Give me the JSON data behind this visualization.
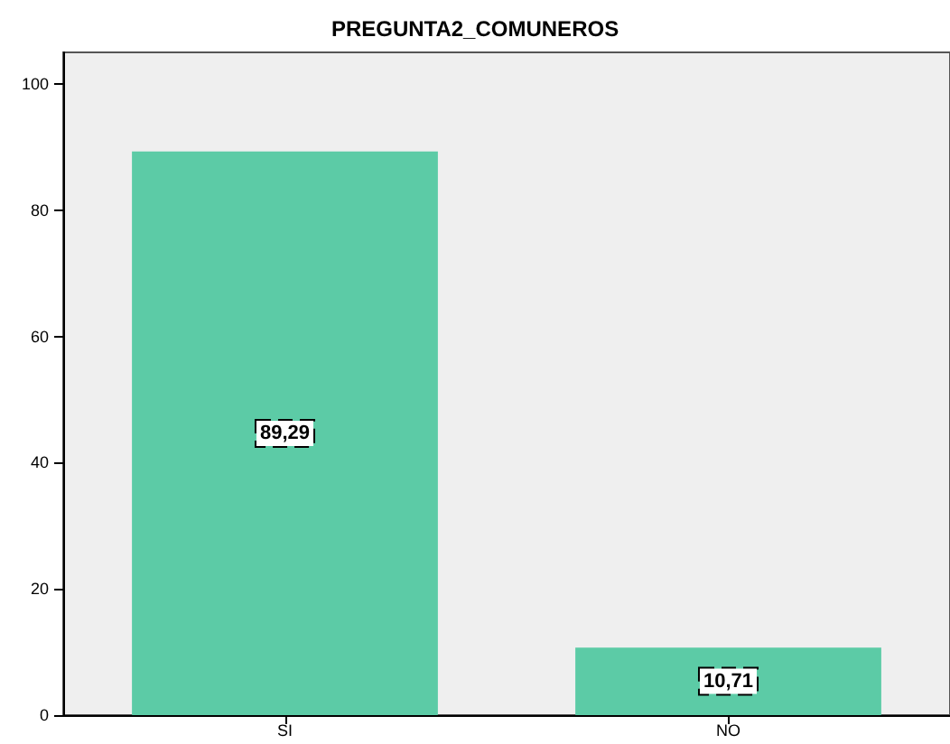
{
  "chart_data": {
    "type": "bar",
    "title": "PREGUNTA2_COMUNEROS",
    "categories": [
      "SI",
      "NO"
    ],
    "values": [
      89.29,
      10.71
    ],
    "value_labels": [
      "89,29",
      "10,71"
    ],
    "color": "#5ccba6",
    "ylim": [
      0,
      105
    ],
    "yticks": [
      0,
      20,
      40,
      60,
      80,
      100
    ],
    "grid": false
  }
}
